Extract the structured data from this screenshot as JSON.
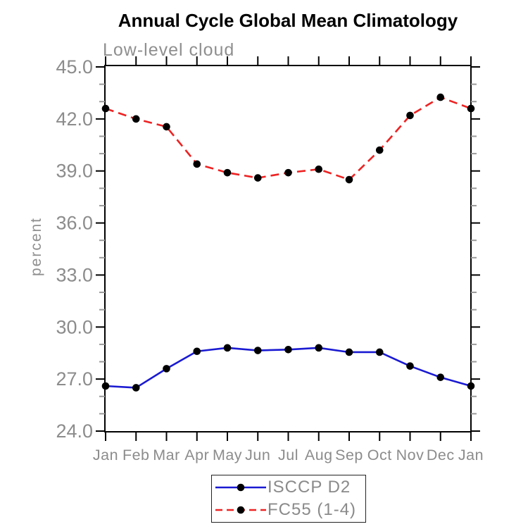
{
  "window": {
    "background": "#ffffff"
  },
  "chart_data": {
    "type": "line",
    "title": "Annual Cycle Global Mean Climatology",
    "subtitle": "Low-level cloud",
    "ylabel": "percent",
    "xlabel": "",
    "x_categories": [
      "Jan",
      "Feb",
      "Mar",
      "Apr",
      "May",
      "Jun",
      "Jul",
      "Aug",
      "Sep",
      "Oct",
      "Nov",
      "Dec",
      "Jan"
    ],
    "y_major_ticks": [
      24.0,
      27.0,
      30.0,
      33.0,
      36.0,
      39.0,
      42.0,
      45.0
    ],
    "y_minor_step": 1.0,
    "ylim": [
      23.9,
      45.1
    ],
    "grid": false,
    "axis_color": "#000000",
    "minor_tick_color": "#9a9a9a",
    "label_color": "#8c8c8c",
    "legend": {
      "position": "bottom-center-outside",
      "border_color": "#222222"
    },
    "series": [
      {
        "name": "ISCCP D2",
        "color": "#1a1ad2",
        "line_style": "solid",
        "marker": "filled-circle",
        "marker_color": "#000000",
        "values": [
          26.6,
          26.5,
          27.6,
          28.6,
          28.8,
          28.65,
          28.7,
          28.8,
          28.55,
          28.55,
          27.75,
          27.1,
          26.6
        ]
      },
      {
        "name": "FC55 (1-4)",
        "color": "#ee2222",
        "line_style": "dashed",
        "marker": "filled-circle",
        "marker_color": "#000000",
        "values": [
          42.6,
          42.0,
          41.55,
          39.4,
          38.9,
          38.6,
          38.9,
          39.1,
          38.5,
          40.2,
          42.2,
          43.25,
          42.6
        ]
      }
    ]
  }
}
